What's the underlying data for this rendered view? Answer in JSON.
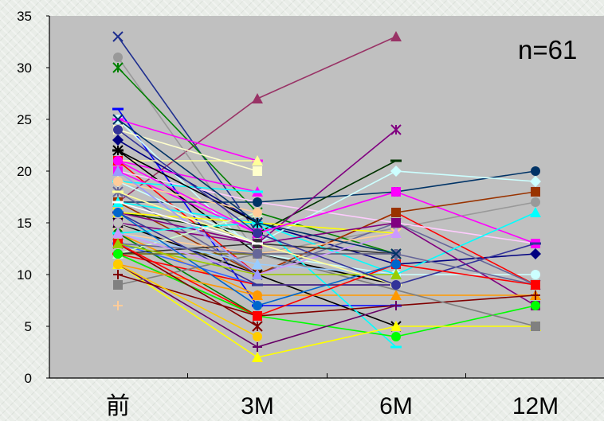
{
  "chart_data": {
    "type": "line",
    "title": "",
    "xlabel": "",
    "ylabel": "",
    "annotation": "n=61",
    "categories": [
      "前",
      "3M",
      "6M",
      "12M"
    ],
    "ylim": [
      0,
      35
    ],
    "yticks": [
      0,
      5,
      10,
      15,
      20,
      25,
      30,
      35
    ],
    "yticklabels": [
      "0",
      "5",
      "10",
      "15",
      "20",
      "25",
      "30",
      "35"
    ],
    "grid": false,
    "legend": "none",
    "plot_background": "#c0c0c0",
    "series": [
      {
        "color": "#1f2f8f",
        "marker": "x",
        "values": [
          33,
          14,
          null,
          null
        ]
      },
      {
        "color": "#993366",
        "marker": "triangle",
        "values": [
          17,
          27,
          33,
          null
        ]
      },
      {
        "color": "#999999",
        "marker": "circle",
        "values": [
          31,
          12,
          null,
          17
        ]
      },
      {
        "color": "#008000",
        "marker": "star",
        "values": [
          30,
          16,
          12,
          null
        ]
      },
      {
        "color": "#0000ff",
        "marker": "dash",
        "values": [
          26,
          7,
          7,
          null
        ]
      },
      {
        "color": "#ccffff",
        "marker": "circle",
        "values": [
          25,
          12,
          10,
          10
        ]
      },
      {
        "color": "#ff00ff",
        "marker": "dash",
        "values": [
          25,
          21,
          null,
          null
        ]
      },
      {
        "color": "#000080",
        "marker": "diamond",
        "values": [
          23,
          15,
          11,
          12
        ]
      },
      {
        "color": "#ffffcc",
        "marker": "square",
        "values": [
          24,
          20,
          null,
          null
        ]
      },
      {
        "color": "#ffff99",
        "marker": "triangle",
        "values": [
          21,
          21,
          null,
          null
        ]
      },
      {
        "color": "#ff00ff",
        "marker": "triangle",
        "values": [
          21,
          18,
          null,
          null
        ]
      },
      {
        "color": "#ff0000",
        "marker": "square",
        "values": [
          21,
          10,
          16,
          9
        ]
      },
      {
        "color": "#000000",
        "marker": "dash",
        "values": [
          22,
          12,
          9,
          null
        ]
      },
      {
        "color": "#ffccff",
        "marker": "circle",
        "values": [
          20,
          17,
          15,
          13
        ]
      },
      {
        "color": "#ff00ff",
        "marker": "square",
        "values": [
          20,
          14,
          18,
          13
        ]
      },
      {
        "color": "#00ffff",
        "marker": "dash",
        "values": [
          19,
          18,
          null,
          null
        ]
      },
      {
        "color": "#003366",
        "marker": "circle",
        "values": [
          17,
          17,
          18,
          20
        ]
      },
      {
        "color": "#666699",
        "marker": "star",
        "values": [
          18,
          10,
          15,
          9
        ]
      },
      {
        "color": "#993300",
        "marker": "square",
        "values": [
          17,
          10,
          16,
          18
        ]
      },
      {
        "color": "#003300",
        "marker": "dash",
        "values": [
          16,
          14,
          21,
          null
        ]
      },
      {
        "color": "#00ffff",
        "marker": "triangle",
        "values": [
          17,
          15,
          10,
          16
        ]
      },
      {
        "color": "#ccffff",
        "marker": "diamond",
        "values": [
          19,
          13,
          20,
          19
        ]
      },
      {
        "color": "#800080",
        "marker": "star",
        "values": [
          16,
          13,
          24,
          null
        ]
      },
      {
        "color": "#ffff00",
        "marker": "x",
        "values": [
          16,
          15,
          14,
          null
        ]
      },
      {
        "color": "#800080",
        "marker": "square",
        "values": [
          15,
          13,
          15,
          7
        ]
      },
      {
        "color": "#000000",
        "marker": "x",
        "values": [
          15,
          10,
          5,
          null
        ]
      },
      {
        "color": "#c0c0c0",
        "marker": "circle",
        "values": [
          15,
          11,
          9,
          null
        ]
      },
      {
        "color": "#ffcc99",
        "marker": "x",
        "values": [
          14,
          12,
          14,
          null
        ]
      },
      {
        "color": "#ff9900",
        "marker": "triangle",
        "values": [
          14,
          8,
          8,
          8
        ]
      },
      {
        "color": "#008000",
        "marker": "circle",
        "values": [
          14,
          6,
          null,
          null
        ]
      },
      {
        "color": "#00ffff",
        "marker": "dash",
        "values": [
          14,
          15,
          3,
          null
        ]
      },
      {
        "color": "#3366ff",
        "marker": "dash",
        "values": [
          13,
          9,
          9,
          null
        ]
      },
      {
        "color": "#666600",
        "marker": "circle",
        "values": [
          12,
          12,
          12,
          null
        ]
      },
      {
        "color": "#ccffcc",
        "marker": "triangle",
        "values": [
          12,
          16,
          null,
          null
        ]
      },
      {
        "color": "#ff0000",
        "marker": "dash",
        "values": [
          12,
          9,
          9,
          null
        ]
      },
      {
        "color": "#333333",
        "marker": "circle",
        "values": [
          12,
          13,
          12,
          null
        ]
      },
      {
        "color": "#800000",
        "marker": "plus",
        "values": [
          12,
          6,
          7,
          8
        ]
      },
      {
        "color": "#00ff00",
        "marker": "circle",
        "values": [
          12,
          6,
          4,
          7
        ]
      },
      {
        "color": "#ffff00",
        "marker": "triangle",
        "values": [
          11,
          2,
          5,
          5
        ]
      },
      {
        "color": "#660066",
        "marker": "plus",
        "values": [
          11,
          3,
          7,
          null
        ]
      },
      {
        "color": "#808080",
        "marker": "square",
        "values": [
          9,
          12,
          null,
          5
        ]
      },
      {
        "color": "#ff9900",
        "marker": "circle",
        "values": [
          11,
          8,
          null,
          null
        ]
      },
      {
        "color": "#800000",
        "marker": "plus",
        "values": [
          10,
          6,
          null,
          null
        ]
      },
      {
        "color": "#800000",
        "marker": "star",
        "values": [
          13,
          5,
          null,
          null
        ]
      },
      {
        "color": "#ffcc99",
        "marker": "plus",
        "values": [
          7,
          null,
          null,
          null
        ]
      },
      {
        "color": "#ffcc00",
        "marker": "circle",
        "values": [
          11,
          4,
          null,
          null
        ]
      },
      {
        "color": "#99ccff",
        "marker": "triangle",
        "values": [
          14,
          11,
          10,
          null
        ]
      },
      {
        "color": "#333399",
        "marker": "dash",
        "values": [
          16,
          9,
          9,
          13
        ]
      },
      {
        "color": "#666699",
        "marker": "circle",
        "values": [
          13,
          12,
          12,
          9
        ]
      },
      {
        "color": "#cc99ff",
        "marker": "triangle",
        "values": [
          14,
          10,
          14,
          null
        ]
      },
      {
        "color": "#ff0000",
        "marker": "square",
        "values": [
          13,
          6,
          11,
          9
        ]
      },
      {
        "color": "#0066cc",
        "marker": "circle",
        "values": [
          16,
          7,
          11,
          null
        ]
      },
      {
        "color": "#99cc00",
        "marker": "triangle",
        "values": [
          13,
          10,
          10,
          null
        ]
      },
      {
        "color": "#ffff99",
        "marker": "dash",
        "values": [
          18,
          13,
          9,
          null
        ]
      },
      {
        "color": "#000000",
        "marker": "star",
        "values": [
          22,
          15,
          null,
          null
        ]
      },
      {
        "color": "#ffcc99",
        "marker": "circle",
        "values": [
          19,
          16,
          null,
          null
        ]
      },
      {
        "color": "#9999ff",
        "marker": "triangle",
        "values": [
          20,
          10,
          null,
          null
        ]
      },
      {
        "color": "#003366",
        "marker": "x",
        "values": [
          25,
          15,
          12,
          null
        ]
      },
      {
        "color": "#ff00ff",
        "marker": "circle",
        "values": [
          21,
          14,
          18,
          null
        ]
      },
      {
        "color": "#ffffff",
        "marker": "dash",
        "values": [
          17,
          13,
          null,
          null
        ]
      },
      {
        "color": "#333399",
        "marker": "circle",
        "values": [
          24,
          14,
          9,
          null
        ]
      }
    ]
  }
}
